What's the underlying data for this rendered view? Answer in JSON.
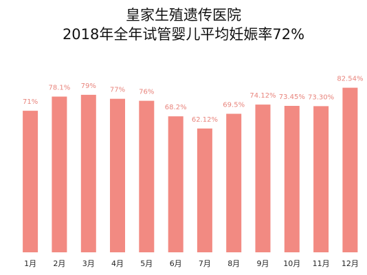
{
  "chart_data": {
    "type": "bar",
    "title": "皇家生殖遗传医院",
    "subtitle": "2018年全年试管婴儿平均妊娠率72%",
    "categories": [
      "1月",
      "2月",
      "3月",
      "4月",
      "5月",
      "6月",
      "7月",
      "8月",
      "9月",
      "10月",
      "11月",
      "12月"
    ],
    "values": [
      71,
      78.1,
      79,
      77,
      76,
      68.2,
      62.12,
      69.5,
      74.12,
      73.45,
      73.3,
      82.54
    ],
    "data_labels": [
      "71%",
      "78.1%",
      "79%",
      "77%",
      "76%",
      "68.2%",
      "62.12%",
      "69.5%",
      "74.12%",
      "73.45%",
      "73.30%",
      "82.54%"
    ],
    "ylim": [
      0,
      90
    ],
    "bar_color": "#f28a82",
    "label_color": "#e8847c",
    "grid": false,
    "legend": "none"
  }
}
